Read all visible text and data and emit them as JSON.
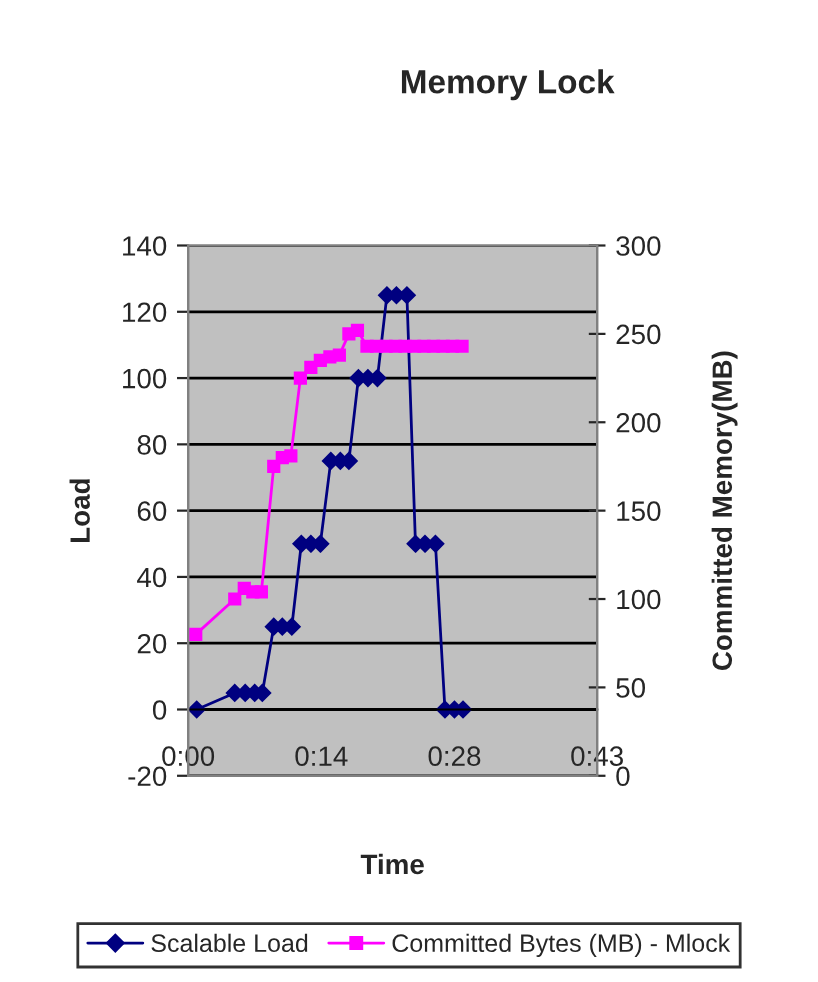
{
  "chart_data": {
    "type": "line",
    "title": "Memory Lock",
    "xlabel": "Time",
    "ylabel": "Load",
    "y2label": "Committed Memory(MB)",
    "xlim": [
      0,
      43
    ],
    "xticks": [
      {
        "value": 0,
        "label": "0:00"
      },
      {
        "value": 14,
        "label": "0:14"
      },
      {
        "value": 28,
        "label": "0:28"
      },
      {
        "value": 43,
        "label": "0:43"
      }
    ],
    "ylim": [
      -20,
      140
    ],
    "yticks": [
      -20,
      0,
      20,
      40,
      60,
      80,
      100,
      120,
      140
    ],
    "y2lim": [
      0,
      300
    ],
    "y2ticks": [
      0,
      50,
      100,
      150,
      200,
      250,
      300
    ],
    "grid": "y",
    "legend": "bottom",
    "series": [
      {
        "name": "Scalable Load",
        "color": "#000080",
        "marker": "diamond",
        "x": [
          0.9,
          4.9,
          6.0,
          7.0,
          7.8,
          9.0,
          9.9,
          10.9,
          11.9,
          12.9,
          13.9,
          15.0,
          16.0,
          16.9,
          17.9,
          18.9,
          19.9,
          20.9,
          21.9,
          23.0,
          23.9,
          24.9,
          26.0,
          27.0,
          28.0,
          28.9
        ],
        "values": [
          0,
          5,
          5,
          5,
          5,
          25,
          25,
          25,
          50,
          50,
          50,
          75,
          75,
          75,
          100,
          100,
          100,
          125,
          125,
          125,
          50,
          50,
          50,
          0,
          0,
          0
        ]
      },
      {
        "name": "Committed Bytes (MB) - Mlock",
        "color": "#ff00ff",
        "marker": "square",
        "axis": "y2",
        "x": [
          0.8,
          4.9,
          5.9,
          6.8,
          7.7,
          9.0,
          9.9,
          10.8,
          11.8,
          12.9,
          13.9,
          14.9,
          15.9,
          16.9,
          17.8,
          18.8,
          19.8,
          20.8,
          21.8,
          22.8,
          23.8,
          24.8,
          25.8,
          26.8,
          27.8,
          28.8
        ],
        "values": [
          80,
          100,
          106,
          104,
          104,
          175,
          180,
          181,
          225,
          231,
          235,
          237,
          238,
          250,
          252,
          243,
          243,
          243,
          243,
          243,
          243,
          243,
          243,
          243,
          243,
          243
        ]
      }
    ]
  }
}
